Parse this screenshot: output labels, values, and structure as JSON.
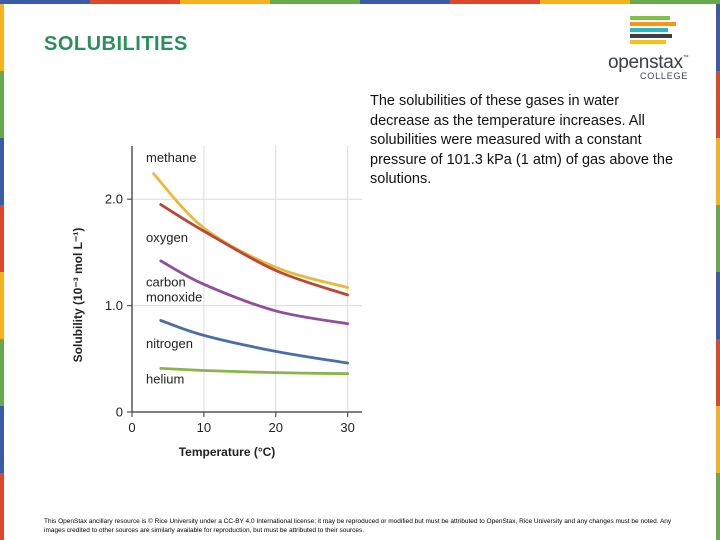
{
  "slide": {
    "title": "SOLUBILITIES",
    "description": "The solubilities of these gases in water decrease as the temperature increases. All solubilities were measured with a constant pressure of 101.3 kPa (1 atm) of gas above the solutions.",
    "footer": "This OpenStax ancillary resource is © Rice University under a CC-BY 4.0 International license; it may be reproduced or modified but must be attributed to OpenStax, Rice University and any changes must be noted. Any images credited to other sources are similarly available for reproduction, but must be attributed to their sources.",
    "logo": {
      "word": "openstax",
      "tm": "™",
      "sub": "COLLEGE",
      "bar_colors": [
        "#7dc242",
        "#f7941d",
        "#2bb6c4",
        "#3a3f46",
        "#f9c013"
      ]
    },
    "title_color": "#2a8f5c",
    "frame_colors": [
      "#3b5ba7",
      "#d94a2b",
      "#f4b223",
      "#6aa84f",
      "#3b5ba7",
      "#d94a2b",
      "#f4b223",
      "#6aa84f"
    ]
  },
  "chart_data": {
    "type": "line",
    "xlabel": "Temperature (°C)",
    "ylabel": "Solubility (10⁻³ mol L⁻¹)",
    "xlim": [
      0,
      32
    ],
    "ylim": [
      0,
      2.5
    ],
    "x_ticks": [
      0,
      10,
      20,
      30
    ],
    "y_ticks": [
      {
        "value": 0,
        "label": "0"
      },
      {
        "value": 1,
        "label": "1.0"
      },
      {
        "value": 2,
        "label": "2.0"
      }
    ],
    "grid": true,
    "series": [
      {
        "name": "methane",
        "color": "#e8b93a",
        "x": [
          3,
          10,
          20,
          30
        ],
        "y": [
          2.24,
          1.73,
          1.36,
          1.17
        ]
      },
      {
        "name": "oxygen",
        "color": "#b8483a",
        "x": [
          4,
          10,
          20,
          30
        ],
        "y": [
          1.95,
          1.7,
          1.33,
          1.1
        ]
      },
      {
        "name": "carbon monoxide",
        "color": "#8e4f9c",
        "x": [
          4,
          10,
          20,
          30
        ],
        "y": [
          1.42,
          1.2,
          0.95,
          0.83
        ]
      },
      {
        "name": "nitrogen",
        "color": "#4c6ea6",
        "x": [
          4,
          10,
          20,
          30
        ],
        "y": [
          0.86,
          0.72,
          0.57,
          0.46
        ]
      },
      {
        "name": "helium",
        "color": "#8ab44a",
        "x": [
          4,
          10,
          20,
          30
        ],
        "y": [
          0.41,
          0.39,
          0.37,
          0.36
        ]
      }
    ],
    "labels": [
      {
        "series": 0,
        "lines": [
          "methane"
        ]
      },
      {
        "series": 1,
        "lines": [
          "oxygen"
        ]
      },
      {
        "series": 2,
        "lines": [
          "carbon",
          "monoxide"
        ]
      },
      {
        "series": 3,
        "lines": [
          "nitrogen"
        ]
      },
      {
        "series": 4,
        "lines": [
          "helium"
        ]
      }
    ]
  }
}
